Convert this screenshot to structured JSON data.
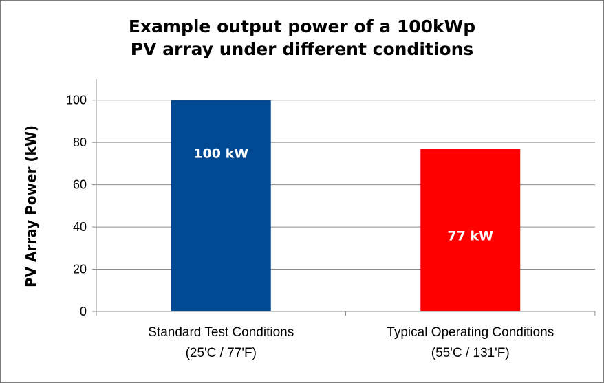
{
  "chart_data": {
    "type": "bar",
    "title_lines": [
      "Example output power of a 100kWp",
      "PV array under different conditions"
    ],
    "ylabel": "PV Array Power (kW)",
    "ylim": [
      0,
      110
    ],
    "yticks": [
      0,
      20,
      40,
      60,
      80,
      100
    ],
    "grid": true,
    "legend": "none",
    "categories": [
      {
        "line1": "Standard Test Conditions",
        "line2": "(25'C / 77'F)"
      },
      {
        "line1": "Typical Operating Conditions",
        "line2": "(55'C / 131'F)"
      }
    ],
    "values": [
      100,
      77
    ],
    "data_labels": [
      "100 kW",
      "77 kW"
    ],
    "colors": [
      "#004a94",
      "#ff0000"
    ]
  }
}
